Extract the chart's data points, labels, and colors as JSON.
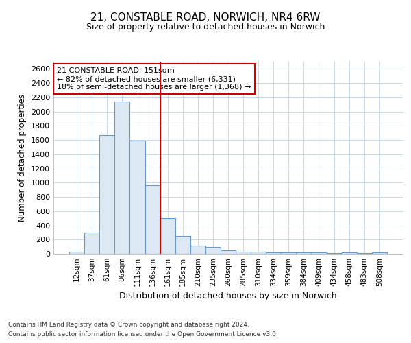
{
  "title_line1": "21, CONSTABLE ROAD, NORWICH, NR4 6RW",
  "title_line2": "Size of property relative to detached houses in Norwich",
  "xlabel": "Distribution of detached houses by size in Norwich",
  "ylabel": "Number of detached properties",
  "categories": [
    "12sqm",
    "37sqm",
    "61sqm",
    "86sqm",
    "111sqm",
    "136sqm",
    "161sqm",
    "185sqm",
    "210sqm",
    "235sqm",
    "260sqm",
    "285sqm",
    "310sqm",
    "334sqm",
    "359sqm",
    "384sqm",
    "409sqm",
    "434sqm",
    "458sqm",
    "483sqm",
    "508sqm"
  ],
  "values": [
    25,
    300,
    1670,
    2140,
    1595,
    960,
    500,
    250,
    120,
    100,
    50,
    30,
    25,
    20,
    15,
    15,
    15,
    5,
    15,
    5,
    20
  ],
  "bar_facecolor": "#dce9f5",
  "bar_edgecolor": "#6699cc",
  "vline_x": 6,
  "vline_color": "#cc0000",
  "annotation_line1": "21 CONSTABLE ROAD: 151sqm",
  "annotation_line2": "← 82% of detached houses are smaller (6,331)",
  "annotation_line3": "18% of semi-detached houses are larger (1,368) →",
  "annotation_box_edgecolor": "#cc0000",
  "ylim": [
    0,
    2700
  ],
  "yticks": [
    0,
    200,
    400,
    600,
    800,
    1000,
    1200,
    1400,
    1600,
    1800,
    2000,
    2200,
    2400,
    2600
  ],
  "footer_line1": "Contains HM Land Registry data © Crown copyright and database right 2024.",
  "footer_line2": "Contains public sector information licensed under the Open Government Licence v3.0.",
  "grid_color": "#c8d8ec",
  "bg_color": "#ffffff"
}
